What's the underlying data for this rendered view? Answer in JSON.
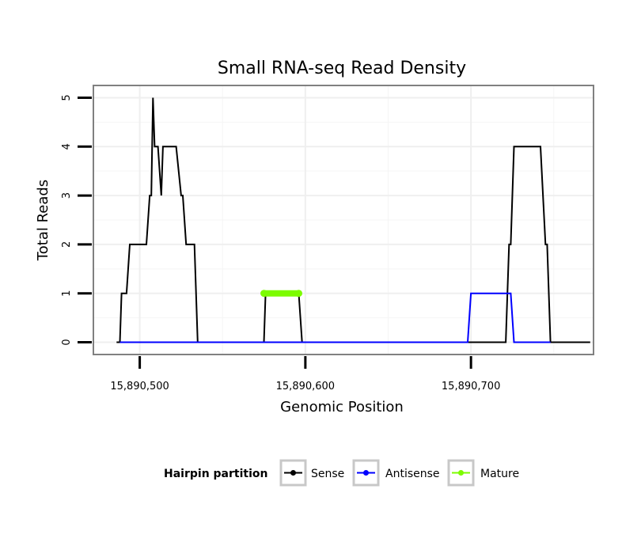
{
  "chart_data": {
    "type": "line",
    "title": "Small RNA-seq Read Density",
    "xlabel": "Genomic Position",
    "ylabel": "Total Reads",
    "xlim": [
      15890472,
      15890774
    ],
    "ylim": [
      -0.25,
      5.25
    ],
    "x_ticks": [
      {
        "value": 15890500,
        "label": "15,890,500"
      },
      {
        "value": 15890600,
        "label": "15,890,600"
      },
      {
        "value": 15890700,
        "label": "15,890,700"
      }
    ],
    "y_ticks": [
      {
        "value": 0,
        "label": "0"
      },
      {
        "value": 1,
        "label": "1"
      },
      {
        "value": 2,
        "label": "2"
      },
      {
        "value": 3,
        "label": "3"
      },
      {
        "value": 4,
        "label": "4"
      },
      {
        "value": 5,
        "label": "5"
      }
    ],
    "grid": true,
    "legend": {
      "title": "Hairpin partition",
      "position": "bottom",
      "entries": [
        "Sense",
        "Antisense",
        "Mature"
      ]
    },
    "series": [
      {
        "name": "Sense",
        "color": "#000000",
        "points": [
          [
            15890486,
            0
          ],
          [
            15890488,
            0
          ],
          [
            15890489,
            1
          ],
          [
            15890492,
            1
          ],
          [
            15890494,
            2
          ],
          [
            15890504,
            2
          ],
          [
            15890506,
            3
          ],
          [
            15890507,
            3
          ],
          [
            15890508,
            5
          ],
          [
            15890509,
            4
          ],
          [
            15890511,
            4
          ],
          [
            15890513,
            3
          ],
          [
            15890514,
            4
          ],
          [
            15890522,
            4
          ],
          [
            15890525,
            3
          ],
          [
            15890526,
            3
          ],
          [
            15890528,
            2
          ],
          [
            15890533,
            2
          ],
          [
            15890535,
            0
          ],
          [
            15890575,
            0
          ],
          [
            15890576,
            1
          ],
          [
            15890596,
            1
          ],
          [
            15890598,
            0
          ],
          [
            15890721,
            0
          ],
          [
            15890723,
            2
          ],
          [
            15890724,
            2
          ],
          [
            15890726,
            4
          ],
          [
            15890742,
            4
          ],
          [
            15890745,
            2
          ],
          [
            15890746,
            2
          ],
          [
            15890748,
            0
          ],
          [
            15890772,
            0
          ]
        ]
      },
      {
        "name": "Antisense",
        "color": "#0000ff",
        "points": [
          [
            15890488,
            0
          ],
          [
            15890698,
            0
          ],
          [
            15890700,
            1
          ],
          [
            15890724,
            1
          ],
          [
            15890726,
            0
          ],
          [
            15890748,
            0
          ]
        ]
      },
      {
        "name": "Mature",
        "color": "#7cfc00",
        "points": [
          [
            15890575,
            1
          ],
          [
            15890596,
            1
          ]
        ]
      }
    ]
  }
}
